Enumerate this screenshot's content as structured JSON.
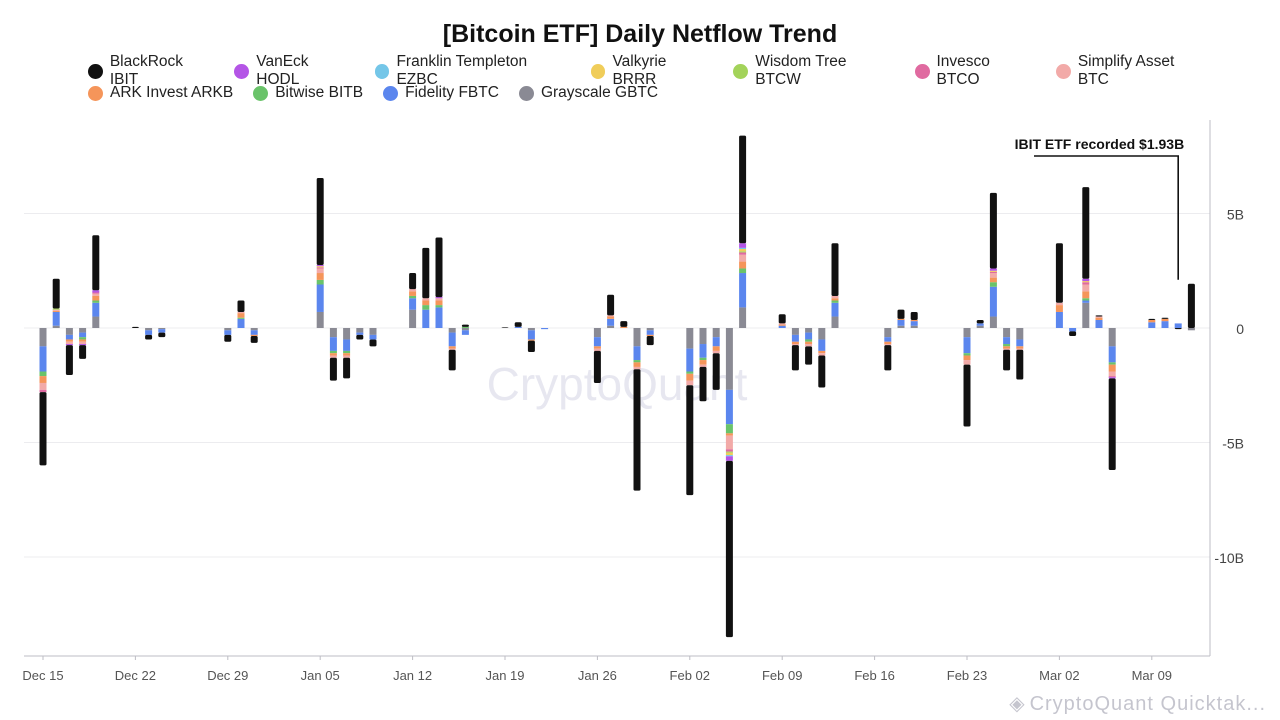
{
  "chart_data": {
    "type": "bar",
    "stacked": true,
    "title": "[Bitcoin ETF] Daily Netflow Trend",
    "unit": "USD",
    "ylim": [
      -14000000000,
      9000000000
    ],
    "yticks": [
      5000000000,
      0,
      -5000000000,
      -10000000000
    ],
    "ytick_labels": [
      "5B",
      "0",
      "-5B",
      "-10B"
    ],
    "grid": true,
    "legend_position": "top",
    "watermark": "CryptoQuant",
    "footer_text": "CryptoQuant Quicktak...",
    "annotation": {
      "text": "IBIT ETF recorded $1.93B",
      "target_date": "Mar 11",
      "value": 1930000000
    },
    "x_tick_labels": [
      "Dec 15",
      "Dec 22",
      "Dec 29",
      "Jan 05",
      "Jan 12",
      "Jan 19",
      "Jan 26",
      "Feb 02",
      "Feb 09",
      "Feb 16",
      "Feb 23",
      "Mar 02",
      "Mar 09"
    ],
    "series_names": [
      "BlackRock IBIT",
      "VanEck HODL",
      "Franklin Templeton EZBC",
      "Valkyrie BRRR",
      "Wisdom Tree BTCW",
      "Invesco BTCO",
      "Simplify Asset BTC",
      "ARK Invest ARKB",
      "Bitwise BITB",
      "Fidelity FBTC",
      "Grayscale GBTC"
    ],
    "series_colors": [
      "#111111",
      "#b455e6",
      "#74c6e8",
      "#f0cd5a",
      "#a3d35a",
      "#e06aa0",
      "#f2aaa8",
      "#f5955a",
      "#6ac36a",
      "#5b86ee",
      "#8a8a94"
    ],
    "days": [
      {
        "date": "Dec 15",
        "v": [
          -3.2,
          0,
          0,
          0,
          0,
          -0.1,
          -0.3,
          -0.3,
          -0.2,
          -1.1,
          -0.8
        ]
      },
      {
        "date": "Dec 16",
        "v": [
          1.3,
          0,
          0,
          0,
          0.05,
          0,
          0.05,
          0.05,
          0,
          0.6,
          0.1
        ]
      },
      {
        "date": "Dec 17",
        "v": [
          -1.3,
          -0.05,
          0,
          0,
          0,
          0,
          -0.1,
          -0.1,
          0,
          -0.2,
          -0.3
        ]
      },
      {
        "date": "Dec 18",
        "v": [
          -0.6,
          -0.05,
          0,
          0,
          0,
          0,
          -0.1,
          -0.1,
          -0.1,
          -0.2,
          -0.2
        ]
      },
      {
        "date": "Dec 19",
        "v": [
          2.4,
          0.1,
          0,
          0,
          0,
          0.05,
          0.1,
          0.2,
          0.1,
          0.6,
          0.5
        ]
      },
      {
        "date": "Dec 22",
        "v": [
          0.05,
          0,
          0,
          0,
          0,
          0,
          0,
          0,
          0,
          0,
          0
        ]
      },
      {
        "date": "Dec 23",
        "v": [
          -0.2,
          0,
          0,
          0,
          0,
          0,
          0,
          0,
          0,
          -0.2,
          -0.1
        ]
      },
      {
        "date": "Dec 24",
        "v": [
          -0.2,
          0,
          0,
          0,
          0,
          0,
          0,
          0,
          0,
          -0.15,
          -0.05
        ]
      },
      {
        "date": "Dec 29",
        "v": [
          -0.3,
          0,
          0,
          0,
          0,
          0,
          0,
          0,
          0,
          -0.2,
          -0.1
        ]
      },
      {
        "date": "Dec 30",
        "v": [
          0.5,
          0,
          0,
          0,
          0,
          0,
          0.05,
          0.2,
          0.05,
          0.4,
          0
        ]
      },
      {
        "date": "Dec 31",
        "v": [
          -0.3,
          0,
          0,
          0,
          0,
          0,
          0,
          -0.05,
          0,
          -0.2,
          -0.1
        ]
      },
      {
        "date": "Jan 05",
        "v": [
          3.8,
          0.05,
          0,
          0.05,
          0,
          0.05,
          0.2,
          0.3,
          0.2,
          1.2,
          0.7
        ]
      },
      {
        "date": "Jan 06",
        "v": [
          -1.0,
          0,
          0,
          0,
          0,
          0,
          -0.1,
          -0.1,
          -0.1,
          -0.6,
          -0.4
        ]
      },
      {
        "date": "Jan 07",
        "v": [
          -0.9,
          0,
          0,
          0,
          0,
          0,
          -0.1,
          -0.1,
          -0.1,
          -0.5,
          -0.5
        ]
      },
      {
        "date": "Jan 08",
        "v": [
          -0.2,
          0,
          0,
          0,
          0,
          0,
          0,
          0,
          0,
          -0.1,
          -0.2
        ]
      },
      {
        "date": "Jan 09",
        "v": [
          -0.3,
          0,
          0,
          0,
          0,
          0,
          0,
          0,
          0,
          -0.2,
          -0.3
        ]
      },
      {
        "date": "Jan 12",
        "v": [
          0.7,
          0,
          0,
          0,
          0,
          0,
          0.1,
          0.2,
          0.1,
          0.5,
          0.8
        ]
      },
      {
        "date": "Jan 13",
        "v": [
          2.2,
          0,
          0,
          0,
          0,
          0,
          0.1,
          0.2,
          0.2,
          0.8,
          0
        ]
      },
      {
        "date": "Jan 14",
        "v": [
          2.6,
          0.05,
          0,
          0,
          0,
          0,
          0.1,
          0.2,
          0.1,
          0.9,
          0
        ]
      },
      {
        "date": "Jan 15",
        "v": [
          -0.9,
          0,
          0,
          0,
          0,
          0,
          -0.05,
          -0.1,
          0,
          -0.6,
          -0.2
        ]
      },
      {
        "date": "Jan 16",
        "v": [
          0.1,
          0,
          0,
          0,
          0,
          0,
          0,
          0,
          0.05,
          -0.2,
          -0.1
        ]
      },
      {
        "date": "Jan 19",
        "v": [
          0.03,
          0,
          0,
          0,
          0,
          0,
          0,
          0,
          0,
          0,
          0
        ]
      },
      {
        "date": "Jan 20",
        "v": [
          0.2,
          0,
          0,
          0,
          0,
          0,
          0,
          0,
          0,
          0.05,
          0
        ]
      },
      {
        "date": "Jan 21",
        "v": [
          -0.5,
          0,
          0,
          0,
          0,
          0,
          0,
          -0.05,
          0,
          -0.4,
          -0.1
        ]
      },
      {
        "date": "Jan 22",
        "v": [
          0,
          0,
          0,
          0,
          0,
          0,
          0,
          0,
          0,
          -0.05,
          0
        ]
      },
      {
        "date": "Jan 26",
        "v": [
          -1.4,
          0,
          0,
          0,
          0,
          0,
          -0.1,
          -0.1,
          0,
          -0.4,
          -0.4
        ]
      },
      {
        "date": "Jan 27",
        "v": [
          0.9,
          0,
          0,
          0,
          0,
          0,
          0.05,
          0.1,
          0,
          0.3,
          0.1
        ]
      },
      {
        "date": "Jan 28",
        "v": [
          0.25,
          0,
          0,
          0,
          0,
          0,
          0,
          0.05,
          0,
          0,
          0
        ]
      },
      {
        "date": "Jan 29",
        "v": [
          -5.3,
          0,
          0,
          0,
          0,
          0,
          -0.1,
          -0.2,
          -0.1,
          -0.6,
          -0.8
        ]
      },
      {
        "date": "Jan 30",
        "v": [
          -0.4,
          0,
          0,
          0,
          0,
          0,
          0,
          -0.05,
          0,
          -0.2,
          -0.1
        ]
      },
      {
        "date": "Feb 02",
        "v": [
          -4.8,
          0,
          0,
          0,
          0,
          0,
          -0.2,
          -0.3,
          -0.1,
          -1.0,
          -0.9
        ]
      },
      {
        "date": "Feb 03",
        "v": [
          -1.5,
          0,
          0,
          0,
          0,
          0,
          -0.1,
          -0.2,
          -0.1,
          -0.6,
          -0.7
        ]
      },
      {
        "date": "Feb 04",
        "v": [
          -1.6,
          0,
          0,
          0,
          0,
          0,
          -0.1,
          -0.2,
          0,
          -0.4,
          -0.4
        ]
      },
      {
        "date": "Feb 05",
        "v": [
          -7.7,
          -0.2,
          -0.05,
          -0.1,
          -0.05,
          -0.1,
          -0.6,
          -0.1,
          -0.4,
          -1.5,
          -2.7
        ]
      },
      {
        "date": "Feb 06",
        "v": [
          4.7,
          0.2,
          0.05,
          0.1,
          0.05,
          0.1,
          0.3,
          0.3,
          0.2,
          1.5,
          0.9
        ]
      },
      {
        "date": "Feb 09",
        "v": [
          0.4,
          0,
          0,
          0,
          0,
          0,
          0.05,
          0.05,
          0,
          0.1,
          0
        ]
      },
      {
        "date": "Feb 10",
        "v": [
          -1.1,
          0,
          0,
          0,
          0,
          0,
          -0.05,
          -0.1,
          0,
          -0.3,
          -0.3
        ]
      },
      {
        "date": "Feb 11",
        "v": [
          -0.8,
          0,
          0,
          0,
          0,
          0,
          -0.1,
          -0.1,
          -0.1,
          -0.3,
          -0.2
        ]
      },
      {
        "date": "Feb 12",
        "v": [
          -1.4,
          0,
          0,
          0,
          0,
          0,
          -0.1,
          -0.1,
          0,
          -0.5,
          -0.5
        ]
      },
      {
        "date": "Feb 13",
        "v": [
          2.3,
          0,
          0,
          0,
          0,
          0,
          0.1,
          0.1,
          0.1,
          0.6,
          0.5
        ]
      },
      {
        "date": "Feb 17",
        "v": [
          -1.1,
          0,
          0,
          0,
          0,
          0,
          -0.05,
          -0.1,
          0,
          -0.2,
          -0.4
        ]
      },
      {
        "date": "Feb 18",
        "v": [
          0.4,
          0,
          0,
          0,
          0,
          0,
          0,
          0.05,
          0,
          0.25,
          0.1
        ]
      },
      {
        "date": "Feb 19",
        "v": [
          0.35,
          0,
          0,
          0,
          0,
          0,
          0,
          0.05,
          0,
          0.2,
          0.1
        ]
      },
      {
        "date": "Feb 23",
        "v": [
          -2.7,
          0,
          0,
          0,
          0,
          0,
          -0.2,
          -0.2,
          -0.1,
          -0.7,
          -0.4
        ]
      },
      {
        "date": "Feb 24",
        "v": [
          0.15,
          0,
          0,
          0,
          0,
          0,
          0,
          0,
          0,
          0.1,
          0.1
        ]
      },
      {
        "date": "Feb 25",
        "v": [
          3.3,
          0.1,
          0,
          0.05,
          0,
          0.05,
          0.2,
          0.2,
          0.2,
          1.3,
          0.5
        ]
      },
      {
        "date": "Feb 26",
        "v": [
          -0.9,
          0,
          0,
          0,
          0,
          0,
          -0.05,
          -0.1,
          -0.1,
          -0.3,
          -0.4
        ]
      },
      {
        "date": "Feb 27",
        "v": [
          -1.3,
          0,
          0,
          0,
          0,
          0,
          -0.05,
          -0.1,
          0,
          -0.3,
          -0.5
        ]
      },
      {
        "date": "Mar 02",
        "v": [
          2.6,
          0,
          0,
          0,
          0,
          0,
          0.1,
          0.3,
          0,
          0.7,
          0
        ]
      },
      {
        "date": "Mar 03",
        "v": [
          -0.2,
          0,
          0,
          0,
          0,
          0,
          0,
          0,
          0,
          -0.15,
          0
        ]
      },
      {
        "date": "Mar 04",
        "v": [
          4.0,
          0.1,
          0,
          0.05,
          0,
          0.1,
          0.3,
          0.3,
          0.1,
          0.1,
          1.1
        ]
      },
      {
        "date": "Mar 05",
        "v": [
          0.05,
          0,
          0,
          0,
          0,
          0,
          0.05,
          0.1,
          0,
          0.35,
          0
        ]
      },
      {
        "date": "Mar 06",
        "v": [
          -4.0,
          -0.05,
          0,
          0,
          0,
          -0.05,
          -0.2,
          -0.3,
          -0.1,
          -0.7,
          -0.8
        ]
      },
      {
        "date": "Mar 09",
        "v": [
          0.05,
          0,
          0,
          0,
          0,
          0,
          0,
          0.1,
          0,
          0.25,
          0
        ]
      },
      {
        "date": "Mar 10",
        "v": [
          0.05,
          0,
          0,
          0,
          0,
          0,
          0,
          0.1,
          0,
          0.3,
          0
        ]
      },
      {
        "date": "Mar 11",
        "v": [
          -0.05,
          0,
          0,
          0,
          0,
          0,
          0,
          0,
          0,
          0.2,
          0
        ]
      },
      {
        "date": "Mar 12",
        "v": [
          1.93,
          0,
          0,
          0,
          0,
          0,
          0,
          0,
          0,
          0,
          -0.1
        ]
      }
    ]
  }
}
